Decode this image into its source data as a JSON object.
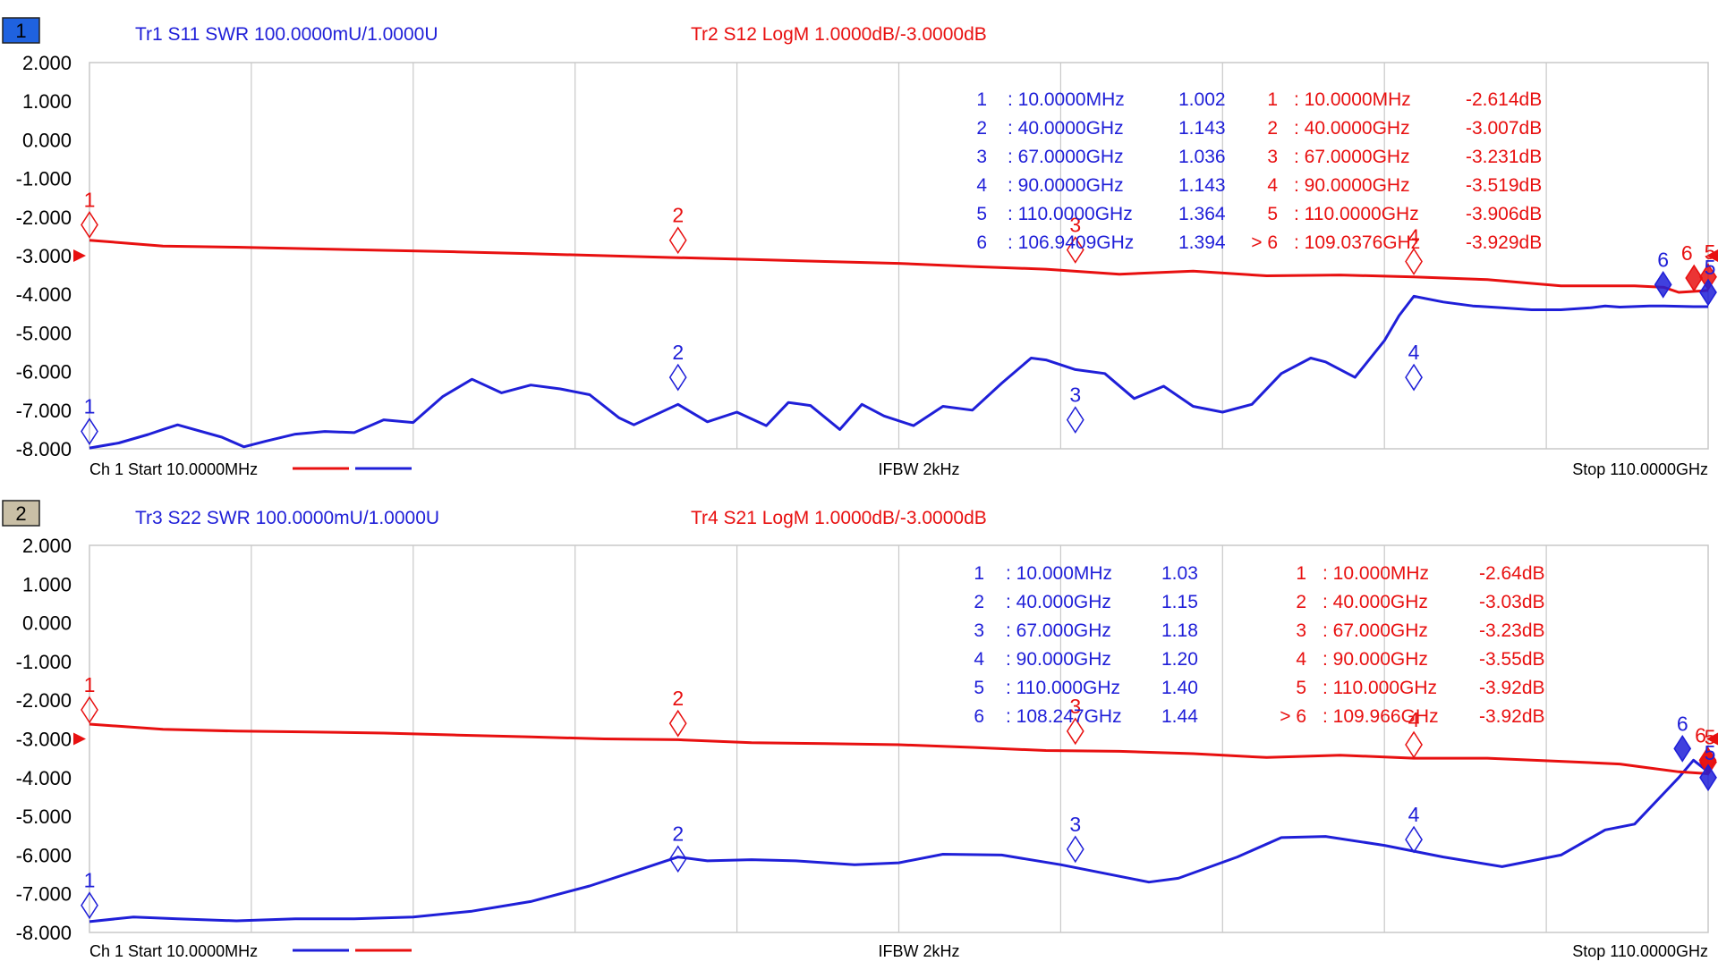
{
  "colors": {
    "blue": "#1f1fd8",
    "red": "#e81010",
    "grid": "#c8c8c8",
    "badge1": "#1f62e0",
    "badge2": "#c9bfa6"
  },
  "chart_data": [
    {
      "type": "line",
      "window": "1",
      "traces": {
        "blue": "Tr1 S11 SWR 100.0000mU/1.0000U",
        "red": "Tr2 S12 LogM 1.0000dB/-3.0000dB"
      },
      "yticks": [
        "2.000",
        "1.000",
        "0.000",
        "-1.000",
        "-2.000",
        "-3.000",
        "-4.000",
        "-5.000",
        "-6.000",
        "-7.000",
        "-8.000"
      ],
      "ylim": [
        -8,
        2
      ],
      "xlim_ghz": [
        0.01,
        110
      ],
      "footer": {
        "start": "Ch 1 Start 10.0000MHz",
        "mid": "IFBW 2kHz",
        "stop": "Stop 110.0000GHz"
      },
      "series": [
        {
          "name": "Tr1 S11 SWR",
          "color": "blue",
          "x": [
            0,
            2,
            4,
            5,
            6,
            9,
            10.5,
            12,
            14,
            16,
            18,
            20,
            22,
            24,
            26,
            28,
            30,
            32,
            34,
            36,
            37,
            40,
            42,
            44,
            46,
            47.5,
            49,
            51,
            52.5,
            54,
            56,
            58,
            60,
            62,
            64,
            65,
            67,
            69,
            71,
            73,
            75,
            77,
            79,
            81,
            83,
            84,
            86,
            88,
            89,
            90,
            92,
            94,
            96,
            98,
            100,
            102,
            103,
            104,
            106,
            107,
            108,
            109,
            110
          ],
          "y": [
            -7.98,
            -7.85,
            -7.63,
            -7.5,
            -7.38,
            -7.7,
            -7.95,
            -7.8,
            -7.62,
            -7.55,
            -7.58,
            -7.25,
            -7.32,
            -6.65,
            -6.2,
            -6.55,
            -6.35,
            -6.45,
            -6.6,
            -7.2,
            -7.38,
            -6.85,
            -7.3,
            -7.05,
            -7.4,
            -6.8,
            -6.88,
            -7.5,
            -6.85,
            -7.15,
            -7.4,
            -6.9,
            -7.0,
            -6.3,
            -5.65,
            -5.7,
            -5.95,
            -6.05,
            -6.7,
            -6.38,
            -6.9,
            -7.05,
            -6.85,
            -6.05,
            -5.65,
            -5.75,
            -6.15,
            -5.2,
            -4.55,
            -4.05,
            -4.2,
            -4.3,
            -4.35,
            -4.4,
            -4.4,
            -4.35,
            -4.3,
            -4.33,
            -4.3,
            -4.3,
            -4.31,
            -4.32,
            -4.32
          ]
        },
        {
          "name": "Tr2 S12 LogM",
          "color": "red",
          "x": [
            0,
            5,
            10,
            15,
            20,
            25,
            30,
            35,
            40,
            45,
            50,
            55,
            60,
            65,
            70,
            75,
            80,
            85,
            90,
            95,
            100,
            105,
            107,
            108,
            110
          ],
          "y": [
            -2.6,
            -2.75,
            -2.78,
            -2.82,
            -2.86,
            -2.9,
            -2.95,
            -3.0,
            -3.05,
            -3.1,
            -3.15,
            -3.2,
            -3.28,
            -3.35,
            -3.48,
            -3.4,
            -3.52,
            -3.5,
            -3.55,
            -3.62,
            -3.78,
            -3.78,
            -3.82,
            -3.95,
            -3.9
          ]
        }
      ],
      "markers_blue": [
        {
          "label": "1",
          "x": 0.01,
          "y": -7.55
        },
        {
          "label": "2",
          "x": 40,
          "y": -6.15
        },
        {
          "label": "3",
          "x": 67,
          "y": -7.25
        },
        {
          "label": "4",
          "x": 90,
          "y": -6.15
        },
        {
          "label": "5",
          "x": 110,
          "y": -3.95
        },
        {
          "label": "6",
          "x": 106.94,
          "y": -3.75
        }
      ],
      "markers_red": [
        {
          "label": "1",
          "x": 0.01,
          "y": -2.2
        },
        {
          "label": "2",
          "x": 40,
          "y": -2.6
        },
        {
          "label": "3",
          "x": 67,
          "y": -2.85
        },
        {
          "label": "4",
          "x": 90,
          "y": -3.15
        },
        {
          "label": "5",
          "x": 110,
          "y": -3.55
        },
        {
          "label": "6",
          "x": 109.04,
          "y": -3.58
        }
      ],
      "table_blue": [
        {
          "n": "1",
          "f": ": 10.0000MHz",
          "v": "1.002"
        },
        {
          "n": "2",
          "f": ": 40.0000GHz",
          "v": "1.143"
        },
        {
          "n": "3",
          "f": ": 67.0000GHz",
          "v": "1.036"
        },
        {
          "n": "4",
          "f": ": 90.0000GHz",
          "v": "1.143"
        },
        {
          "n": "5",
          "f": ": 110.0000GHz",
          "v": "1.364"
        },
        {
          "n": "6",
          "f": ": 106.9409GHz",
          "v": "1.394"
        }
      ],
      "table_red": [
        {
          "n": "1",
          "f": ": 10.0000MHz",
          "v": "-2.614dB"
        },
        {
          "n": "2",
          "f": ": 40.0000GHz",
          "v": "-3.007dB"
        },
        {
          "n": "3",
          "f": ": 67.0000GHz",
          "v": "-3.231dB"
        },
        {
          "n": "4",
          "f": ": 90.0000GHz",
          "v": "-3.519dB"
        },
        {
          "n": "5",
          "f": ": 110.0000GHz",
          "v": "-3.906dB"
        },
        {
          "n": "> 6",
          "f": ": 109.0376GHz",
          "v": "-3.929dB"
        }
      ]
    },
    {
      "type": "line",
      "window": "2",
      "traces": {
        "blue": "Tr3 S22 SWR 100.0000mU/1.0000U",
        "red": "Tr4 S21 LogM 1.0000dB/-3.0000dB"
      },
      "yticks": [
        "2.000",
        "1.000",
        "0.000",
        "-1.000",
        "-2.000",
        "-3.000",
        "-4.000",
        "-5.000",
        "-6.000",
        "-7.000",
        "-8.000"
      ],
      "ylim": [
        -8,
        2
      ],
      "xlim_ghz": [
        0.01,
        110
      ],
      "footer": {
        "start": "Ch 1 Start 10.0000MHz",
        "mid": "IFBW 2kHz",
        "stop": "Stop 110.0000GHz"
      },
      "series": [
        {
          "name": "Tr3 S22 SWR",
          "color": "blue",
          "x": [
            0,
            3,
            6,
            10,
            14,
            18,
            22,
            26,
            30,
            34,
            38,
            40,
            42,
            45,
            48,
            52,
            55,
            58,
            62,
            66,
            70,
            72,
            74,
            78,
            81,
            84,
            88,
            92,
            96,
            100,
            103,
            105,
            107,
            108,
            109,
            110
          ],
          "y": [
            -7.72,
            -7.6,
            -7.65,
            -7.7,
            -7.65,
            -7.65,
            -7.6,
            -7.45,
            -7.2,
            -6.8,
            -6.3,
            -6.05,
            -6.15,
            -6.12,
            -6.15,
            -6.25,
            -6.2,
            -5.98,
            -6.0,
            -6.25,
            -6.55,
            -6.7,
            -6.6,
            -6.05,
            -5.55,
            -5.52,
            -5.75,
            -6.05,
            -6.3,
            -6.0,
            -5.35,
            -5.2,
            -4.4,
            -4.0,
            -3.55,
            -3.85
          ]
        },
        {
          "name": "Tr4 S21 LogM",
          "color": "red",
          "x": [
            0,
            5,
            10,
            15,
            20,
            25,
            30,
            35,
            40,
            45,
            50,
            55,
            60,
            65,
            70,
            75,
            80,
            85,
            90,
            95,
            100,
            104,
            106,
            108,
            110
          ],
          "y": [
            -2.62,
            -2.75,
            -2.8,
            -2.82,
            -2.85,
            -2.9,
            -2.95,
            -3.0,
            -3.02,
            -3.1,
            -3.12,
            -3.15,
            -3.22,
            -3.3,
            -3.32,
            -3.38,
            -3.48,
            -3.42,
            -3.5,
            -3.5,
            -3.58,
            -3.65,
            -3.75,
            -3.85,
            -3.9
          ]
        }
      ],
      "markers_blue": [
        {
          "label": "1",
          "x": 0.01,
          "y": -7.3
        },
        {
          "label": "2",
          "x": 40,
          "y": -6.1
        },
        {
          "label": "3",
          "x": 67,
          "y": -5.85
        },
        {
          "label": "4",
          "x": 90,
          "y": -5.6
        },
        {
          "label": "5",
          "x": 110,
          "y": -4.0
        },
        {
          "label": "6",
          "x": 108.25,
          "y": -3.25
        }
      ],
      "markers_red": [
        {
          "label": "1",
          "x": 0.01,
          "y": -2.25
        },
        {
          "label": "2",
          "x": 40,
          "y": -2.6
        },
        {
          "label": "3",
          "x": 67,
          "y": -2.8
        },
        {
          "label": "4",
          "x": 90,
          "y": -3.15
        },
        {
          "label": "5",
          "x": 110,
          "y": -3.6
        },
        {
          "label": "6",
          "x": 109.97,
          "y": -3.55
        }
      ],
      "table_blue": [
        {
          "n": "1",
          "f": ": 10.000MHz",
          "v": "1.03"
        },
        {
          "n": "2",
          "f": ": 40.000GHz",
          "v": "1.15"
        },
        {
          "n": "3",
          "f": ": 67.000GHz",
          "v": "1.18"
        },
        {
          "n": "4",
          "f": ": 90.000GHz",
          "v": "1.20"
        },
        {
          "n": "5",
          "f": ": 110.000GHz",
          "v": "1.40"
        },
        {
          "n": "6",
          "f": ": 108.247GHz",
          "v": "1.44"
        }
      ],
      "table_red": [
        {
          "n": "1",
          "f": ": 10.000MHz",
          "v": "-2.64dB"
        },
        {
          "n": "2",
          "f": ": 40.000GHz",
          "v": "-3.03dB"
        },
        {
          "n": "3",
          "f": ": 67.000GHz",
          "v": "-3.23dB"
        },
        {
          "n": "4",
          "f": ": 90.000GHz",
          "v": "-3.55dB"
        },
        {
          "n": "5",
          "f": ": 110.000GHz",
          "v": "-3.92dB"
        },
        {
          "n": "> 6",
          "f": ": 109.966GHz",
          "v": "-3.92dB"
        }
      ]
    }
  ]
}
